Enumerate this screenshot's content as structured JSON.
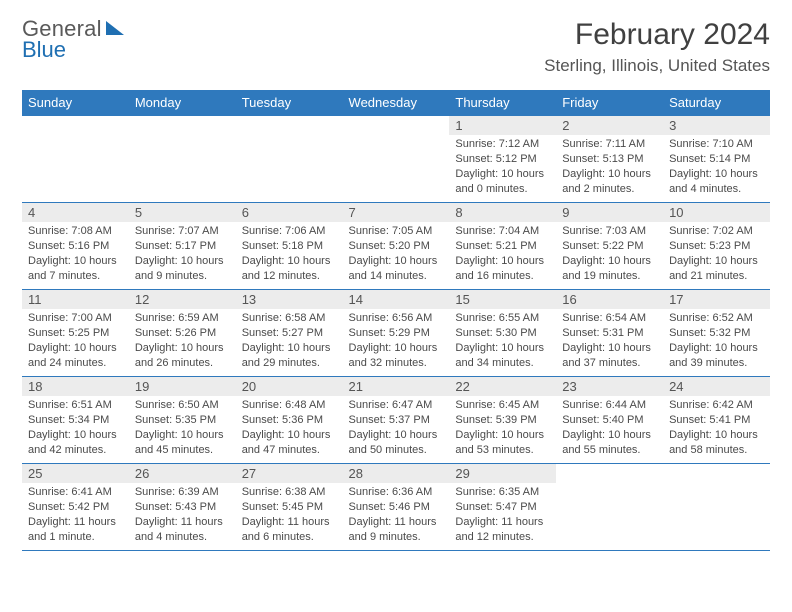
{
  "logo": {
    "line1": "General",
    "line2": "Blue"
  },
  "title": "February 2024",
  "location": "Sterling, Illinois, United States",
  "colors": {
    "header_bar": "#2f79bd",
    "daynum_bg": "#ececec",
    "rule": "#2f79bd",
    "logo_blue": "#1f6fb2",
    "text": "#404040"
  },
  "dow": [
    "Sunday",
    "Monday",
    "Tuesday",
    "Wednesday",
    "Thursday",
    "Friday",
    "Saturday"
  ],
  "weeks": [
    [
      null,
      null,
      null,
      null,
      {
        "n": "1",
        "sr": "7:12 AM",
        "ss": "5:12 PM",
        "dl": "10 hours and 0 minutes."
      },
      {
        "n": "2",
        "sr": "7:11 AM",
        "ss": "5:13 PM",
        "dl": "10 hours and 2 minutes."
      },
      {
        "n": "3",
        "sr": "7:10 AM",
        "ss": "5:14 PM",
        "dl": "10 hours and 4 minutes."
      }
    ],
    [
      {
        "n": "4",
        "sr": "7:08 AM",
        "ss": "5:16 PM",
        "dl": "10 hours and 7 minutes."
      },
      {
        "n": "5",
        "sr": "7:07 AM",
        "ss": "5:17 PM",
        "dl": "10 hours and 9 minutes."
      },
      {
        "n": "6",
        "sr": "7:06 AM",
        "ss": "5:18 PM",
        "dl": "10 hours and 12 minutes."
      },
      {
        "n": "7",
        "sr": "7:05 AM",
        "ss": "5:20 PM",
        "dl": "10 hours and 14 minutes."
      },
      {
        "n": "8",
        "sr": "7:04 AM",
        "ss": "5:21 PM",
        "dl": "10 hours and 16 minutes."
      },
      {
        "n": "9",
        "sr": "7:03 AM",
        "ss": "5:22 PM",
        "dl": "10 hours and 19 minutes."
      },
      {
        "n": "10",
        "sr": "7:02 AM",
        "ss": "5:23 PM",
        "dl": "10 hours and 21 minutes."
      }
    ],
    [
      {
        "n": "11",
        "sr": "7:00 AM",
        "ss": "5:25 PM",
        "dl": "10 hours and 24 minutes."
      },
      {
        "n": "12",
        "sr": "6:59 AM",
        "ss": "5:26 PM",
        "dl": "10 hours and 26 minutes."
      },
      {
        "n": "13",
        "sr": "6:58 AM",
        "ss": "5:27 PM",
        "dl": "10 hours and 29 minutes."
      },
      {
        "n": "14",
        "sr": "6:56 AM",
        "ss": "5:29 PM",
        "dl": "10 hours and 32 minutes."
      },
      {
        "n": "15",
        "sr": "6:55 AM",
        "ss": "5:30 PM",
        "dl": "10 hours and 34 minutes."
      },
      {
        "n": "16",
        "sr": "6:54 AM",
        "ss": "5:31 PM",
        "dl": "10 hours and 37 minutes."
      },
      {
        "n": "17",
        "sr": "6:52 AM",
        "ss": "5:32 PM",
        "dl": "10 hours and 39 minutes."
      }
    ],
    [
      {
        "n": "18",
        "sr": "6:51 AM",
        "ss": "5:34 PM",
        "dl": "10 hours and 42 minutes."
      },
      {
        "n": "19",
        "sr": "6:50 AM",
        "ss": "5:35 PM",
        "dl": "10 hours and 45 minutes."
      },
      {
        "n": "20",
        "sr": "6:48 AM",
        "ss": "5:36 PM",
        "dl": "10 hours and 47 minutes."
      },
      {
        "n": "21",
        "sr": "6:47 AM",
        "ss": "5:37 PM",
        "dl": "10 hours and 50 minutes."
      },
      {
        "n": "22",
        "sr": "6:45 AM",
        "ss": "5:39 PM",
        "dl": "10 hours and 53 minutes."
      },
      {
        "n": "23",
        "sr": "6:44 AM",
        "ss": "5:40 PM",
        "dl": "10 hours and 55 minutes."
      },
      {
        "n": "24",
        "sr": "6:42 AM",
        "ss": "5:41 PM",
        "dl": "10 hours and 58 minutes."
      }
    ],
    [
      {
        "n": "25",
        "sr": "6:41 AM",
        "ss": "5:42 PM",
        "dl": "11 hours and 1 minute."
      },
      {
        "n": "26",
        "sr": "6:39 AM",
        "ss": "5:43 PM",
        "dl": "11 hours and 4 minutes."
      },
      {
        "n": "27",
        "sr": "6:38 AM",
        "ss": "5:45 PM",
        "dl": "11 hours and 6 minutes."
      },
      {
        "n": "28",
        "sr": "6:36 AM",
        "ss": "5:46 PM",
        "dl": "11 hours and 9 minutes."
      },
      {
        "n": "29",
        "sr": "6:35 AM",
        "ss": "5:47 PM",
        "dl": "11 hours and 12 minutes."
      },
      null,
      null
    ]
  ],
  "labels": {
    "sunrise": "Sunrise: ",
    "sunset": "Sunset: ",
    "daylight": "Daylight: "
  }
}
